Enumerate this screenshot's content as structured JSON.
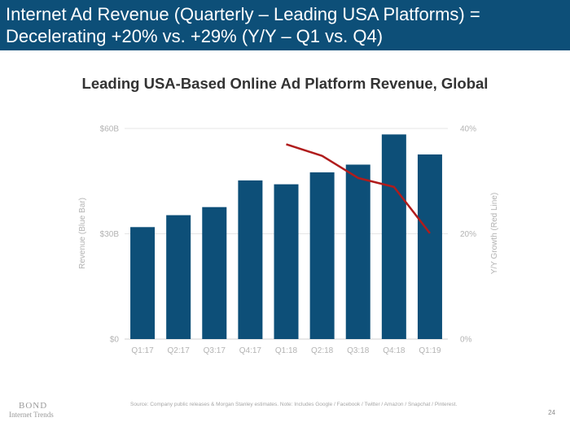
{
  "header": {
    "title": "Internet Ad Revenue (Quarterly – Leading USA Platforms) = Decelerating +20% vs. +29% (Y/Y – Q1 vs. Q4)"
  },
  "chart_data": {
    "type": "bar",
    "title": "Leading USA-Based Online Ad Platform Revenue, Global",
    "categories": [
      "Q1:17",
      "Q2:17",
      "Q3:17",
      "Q4:17",
      "Q1:18",
      "Q2:18",
      "Q3:18",
      "Q4:18",
      "Q1:19"
    ],
    "series": [
      {
        "name": "Revenue (Blue Bar)",
        "axis": "left",
        "type": "bar",
        "color": "#0d4f78",
        "values": [
          31.9,
          35.3,
          37.6,
          45.2,
          44.1,
          47.5,
          49.7,
          58.3,
          52.6
        ]
      },
      {
        "name": "Y/Y Growth (Red Line)",
        "axis": "right",
        "type": "line",
        "color": "#b01c1c",
        "values": [
          null,
          null,
          null,
          null,
          37.0,
          34.8,
          30.6,
          28.9,
          20.1
        ]
      }
    ],
    "ylabel": "Revenue (Blue Bar)",
    "y2label": "Y/Y Growth (Red Line)",
    "ylim": [
      0,
      60
    ],
    "y2lim": [
      0,
      40
    ],
    "yticks": [
      {
        "value": 0,
        "label": "$0"
      },
      {
        "value": 30,
        "label": "$30B"
      },
      {
        "value": 60,
        "label": "$60B"
      }
    ],
    "y2ticks": [
      {
        "value": 0,
        "label": "0%"
      },
      {
        "value": 20,
        "label": "20%"
      },
      {
        "value": 40,
        "label": "40%"
      }
    ],
    "grid": true
  },
  "footer": {
    "logo_brand": "BOND",
    "logo_sub": "Internet Trends",
    "source": "Source: Company public releases & Morgan Stanley estimates. Note: Includes Google / Facebook / Twitter / Amazon / Snapchat / Pinterest.",
    "page_number": "24"
  }
}
